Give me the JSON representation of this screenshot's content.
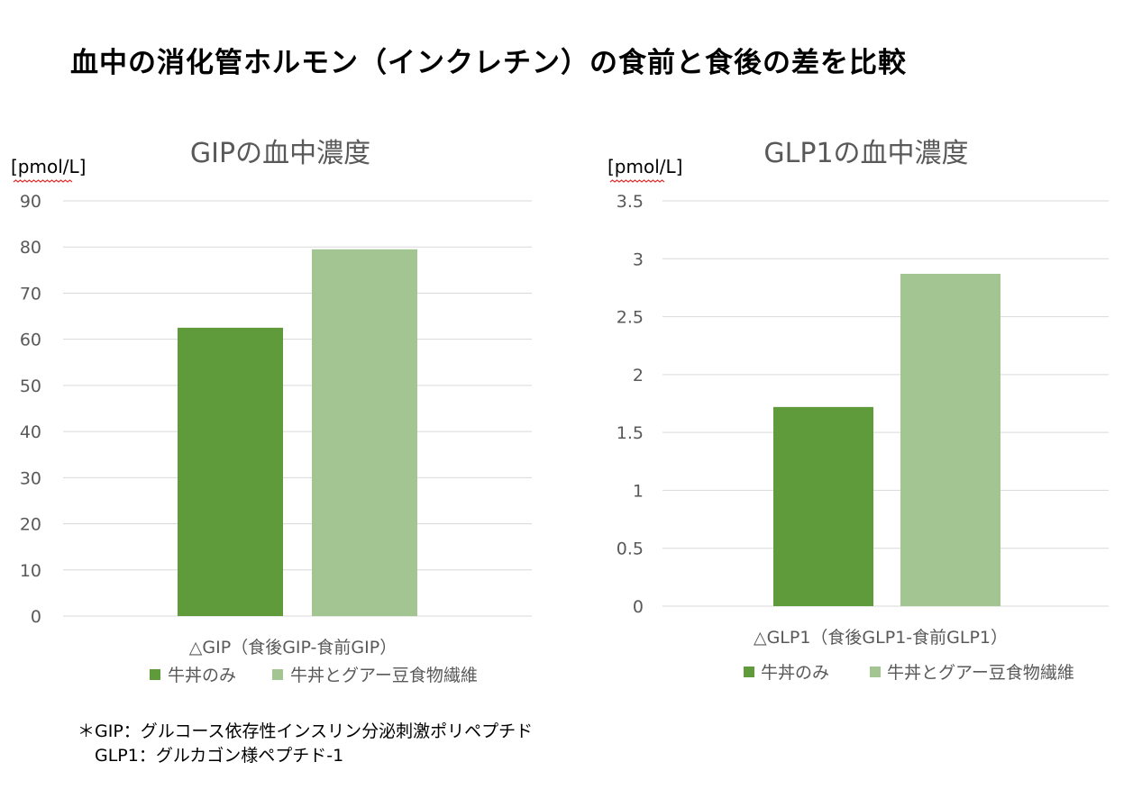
{
  "title": "血中の消化管ホルモン（インクレチン）の食前と食後の差を比較",
  "legend": [
    "牛丼のみ",
    "牛丼とグアー豆食物繊維"
  ],
  "colors": {
    "series1": "#5f9a3b",
    "series2": "#a3c592"
  },
  "chart_data": [
    {
      "type": "bar",
      "title": "GIPの血中濃度",
      "ylabel": "[pmol/L]",
      "categories": [
        "△GIP（食後GIP-食前GIP）"
      ],
      "series": [
        {
          "name": "牛丼のみ",
          "values": [
            62.5
          ]
        },
        {
          "name": "牛丼とグアー豆食物繊維",
          "values": [
            79.5
          ]
        }
      ],
      "ylim": [
        0,
        90
      ],
      "yticks": [
        0,
        10,
        20,
        30,
        40,
        50,
        60,
        70,
        80,
        90
      ],
      "ytick_labels": [
        "0",
        "10",
        "20",
        "30",
        "40",
        "50",
        "60",
        "70",
        "80",
        "90"
      ],
      "legend_position": "bottom",
      "grid": true
    },
    {
      "type": "bar",
      "title": "GLP1の血中濃度",
      "ylabel": "[pmol/L]",
      "categories": [
        "△GLP1（食後GLP1-食前GLP1）"
      ],
      "series": [
        {
          "name": "牛丼のみ",
          "values": [
            1.72
          ]
        },
        {
          "name": "牛丼とグアー豆食物繊維",
          "values": [
            2.87
          ]
        }
      ],
      "ylim": [
        0,
        3.5
      ],
      "yticks": [
        0,
        0.5,
        1,
        1.5,
        2,
        2.5,
        3,
        3.5
      ],
      "ytick_labels": [
        "0",
        "0.5",
        "1",
        "1.5",
        "2",
        "2.5",
        "3",
        "3.5"
      ],
      "legend_position": "bottom",
      "grid": true
    }
  ],
  "footnotes": [
    "＊GIP：グルコース依存性インスリン分泌刺激ポリペプチド",
    "　GLP1：グルカゴン様ペプチド-1"
  ]
}
